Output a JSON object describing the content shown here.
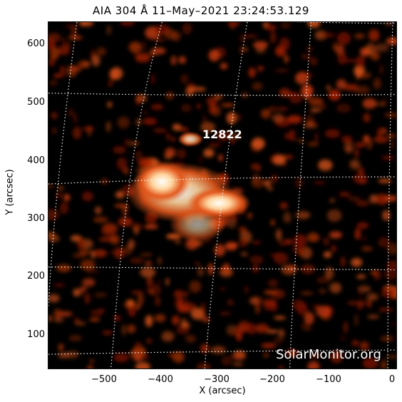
{
  "title": "AIA 304 Å 11–May–2021 23:24:53.129",
  "y_axis": {
    "label": "Y (arcsec)",
    "ticks": [
      "600",
      "500",
      "400",
      "300",
      "200",
      "100"
    ]
  },
  "x_axis": {
    "label": "X (arcsec)",
    "ticks": [
      "−500",
      "−400",
      "−300",
      "−200",
      "−100",
      "0"
    ]
  },
  "annotations": {
    "active_region": "12822"
  },
  "watermark": "SolarMonitor.org",
  "colors": {
    "background": "#000000",
    "emission_low": "#7a1200",
    "emission_mid": "#e0561a",
    "emission_high": "#ffffff",
    "grid": "#ffffff"
  }
}
